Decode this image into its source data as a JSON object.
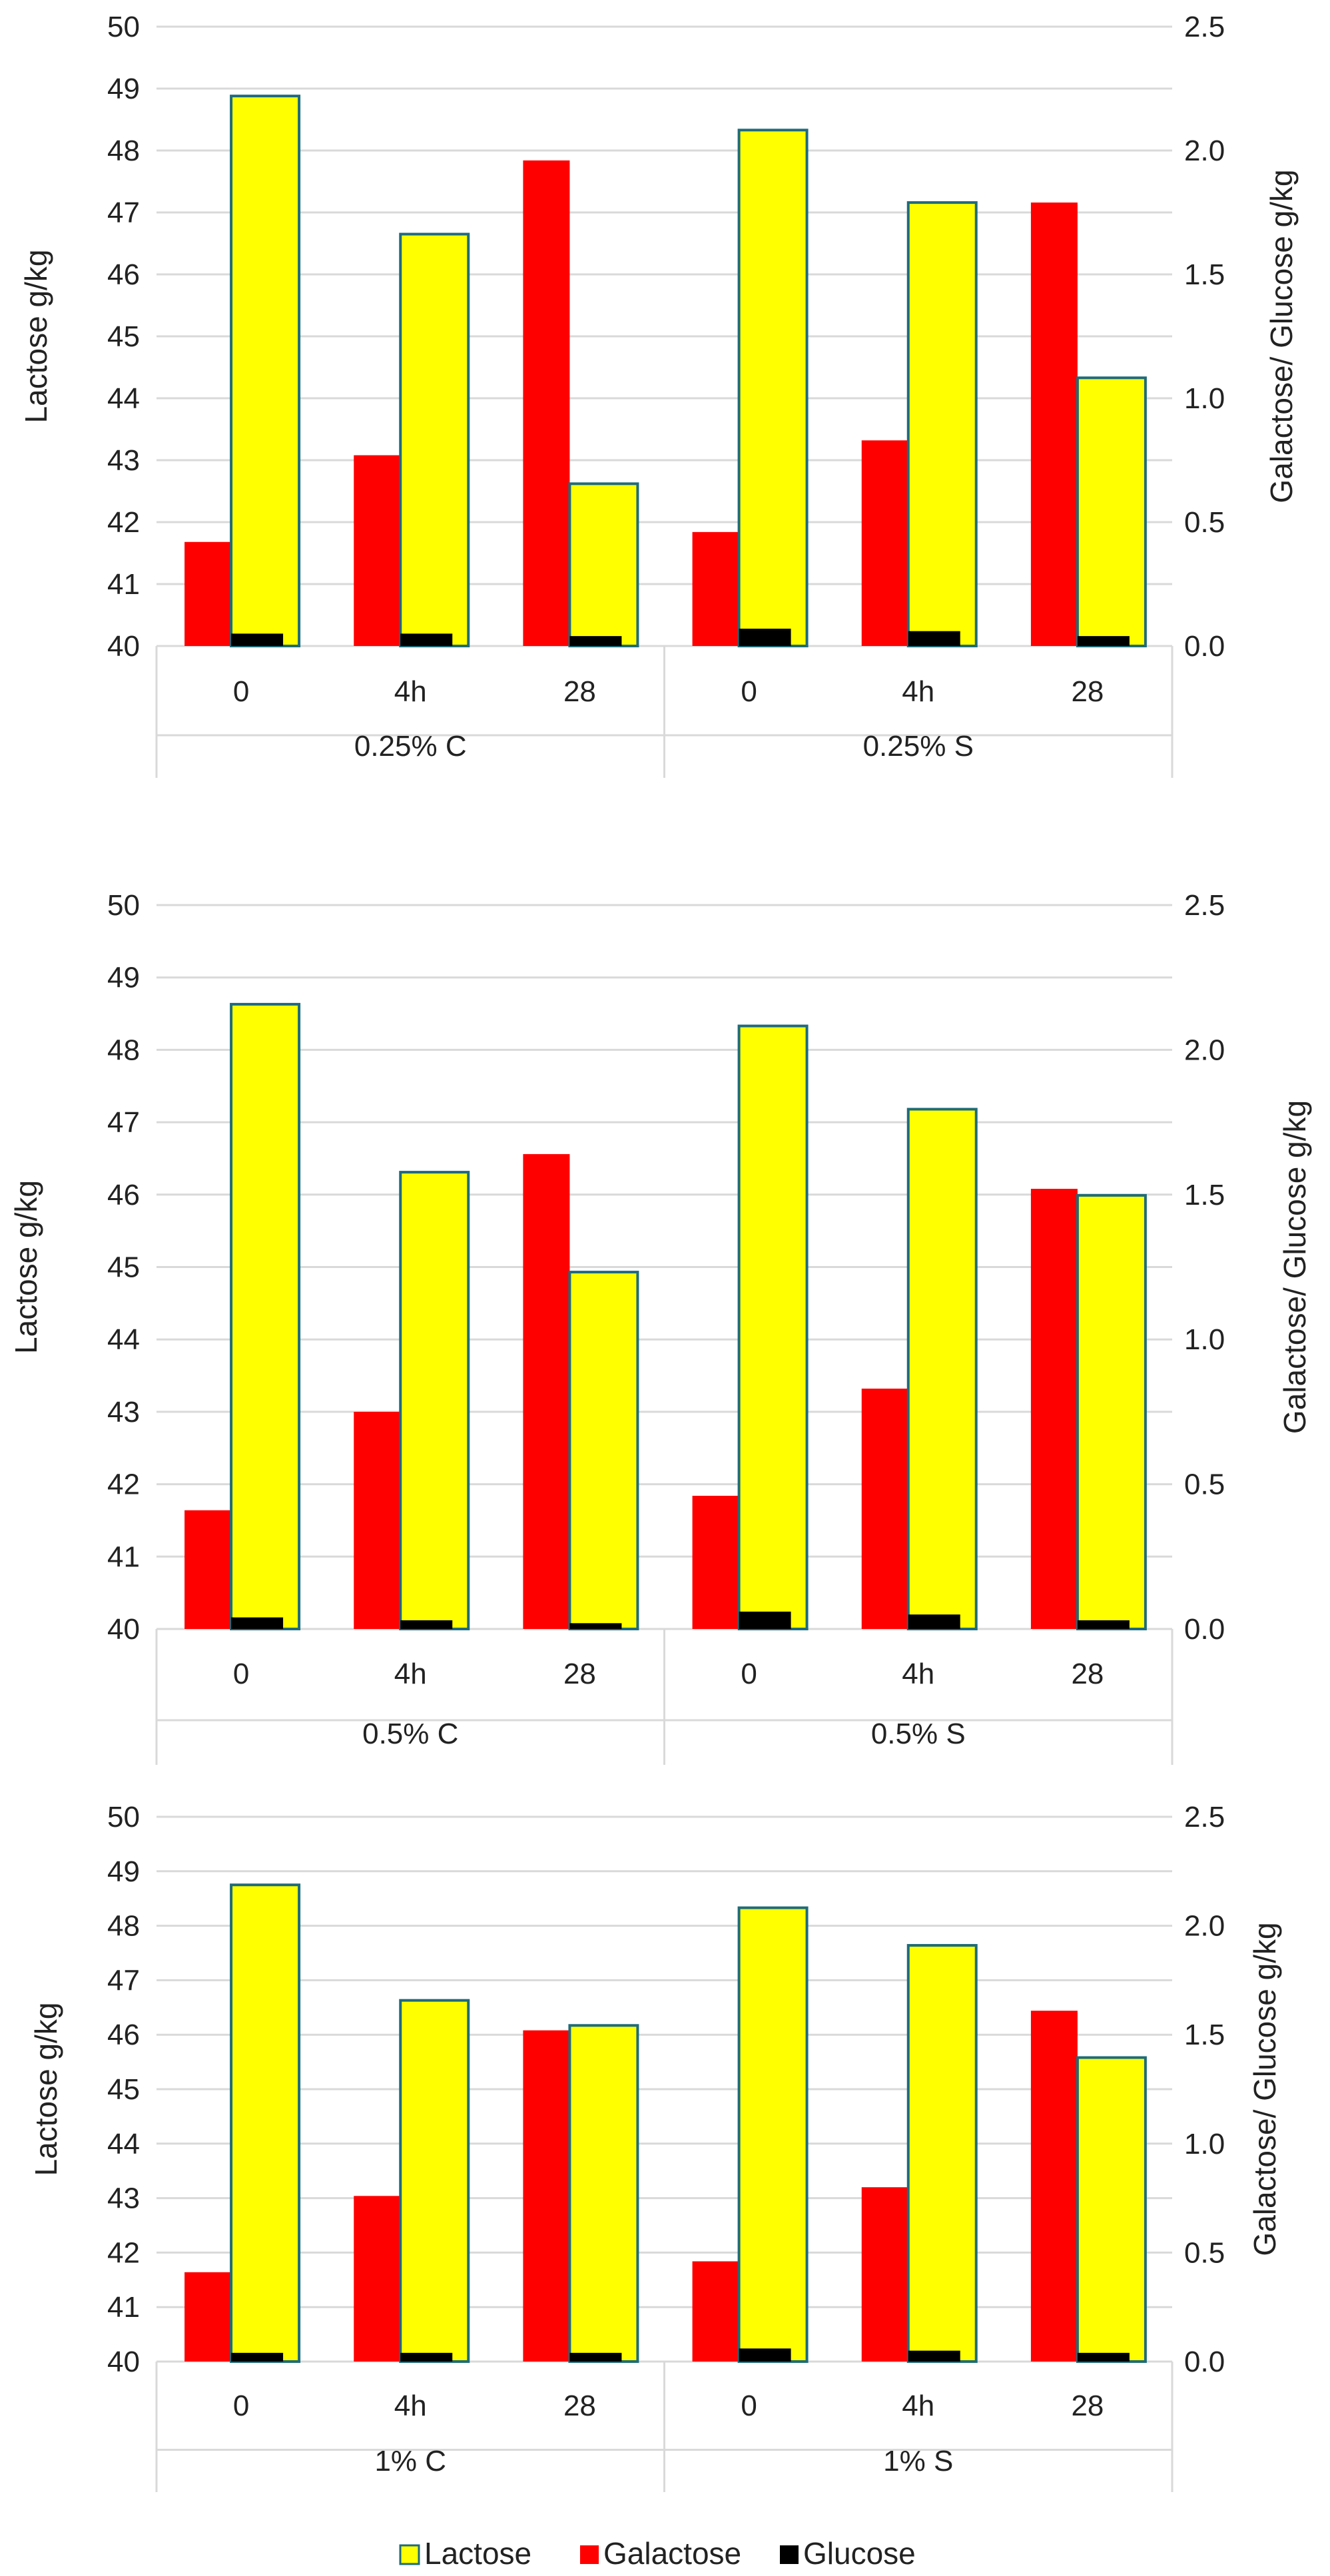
{
  "legend": {
    "items": [
      {
        "name": "Lactose",
        "color": "#ffff00",
        "border": "#1f6b7a"
      },
      {
        "name": "Galactose",
        "color": "#ff0000"
      },
      {
        "name": "Glucose",
        "color": "#000000"
      }
    ]
  },
  "chart_data": [
    {
      "type": "bar",
      "ylabel": "Lactose g/kg",
      "y2label": "Galactose/ Glucose g/kg",
      "ylim": [
        40,
        50
      ],
      "y2lim": [
        0,
        2.5
      ],
      "yticks": [
        "40",
        "41",
        "42",
        "43",
        "44",
        "45",
        "46",
        "47",
        "48",
        "49",
        "50"
      ],
      "y2ticks": [
        "0.0",
        "0.5",
        "1.0",
        "1.5",
        "2.0",
        "2.5"
      ],
      "categories": [
        "0",
        "4h",
        "28",
        "0",
        "4h",
        "28"
      ],
      "groups": [
        "0.25% C",
        "0.25% S"
      ],
      "series": [
        {
          "name": "Lactose",
          "axis": "left",
          "values": [
            48.88,
            46.65,
            42.62,
            48.33,
            47.16,
            44.33
          ]
        },
        {
          "name": "Galactose",
          "axis": "right",
          "values": [
            0.42,
            0.77,
            1.96,
            0.46,
            0.83,
            1.79
          ]
        },
        {
          "name": "Glucose",
          "axis": "right",
          "values": [
            0.05,
            0.05,
            0.04,
            0.07,
            0.06,
            0.04
          ]
        }
      ]
    },
    {
      "type": "bar",
      "ylabel": "Lactose g/kg",
      "y2label": "Galactose/ Glucose g/kg",
      "ylim": [
        40,
        50
      ],
      "y2lim": [
        0,
        2.5
      ],
      "yticks": [
        "40",
        "41",
        "42",
        "43",
        "44",
        "45",
        "46",
        "47",
        "48",
        "49",
        "50"
      ],
      "y2ticks": [
        "0.0",
        "0.5",
        "1.0",
        "1.5",
        "2.0",
        "2.5"
      ],
      "categories": [
        "0",
        "4h",
        "28",
        "0",
        "4h",
        "28"
      ],
      "groups": [
        "0.5% C",
        "0.5% S"
      ],
      "series": [
        {
          "name": "Lactose",
          "axis": "left",
          "values": [
            48.63,
            46.31,
            44.93,
            48.33,
            47.18,
            45.99
          ]
        },
        {
          "name": "Galactose",
          "axis": "right",
          "values": [
            0.41,
            0.75,
            1.64,
            0.46,
            0.83,
            1.52
          ]
        },
        {
          "name": "Glucose",
          "axis": "right",
          "values": [
            0.04,
            0.03,
            0.02,
            0.06,
            0.05,
            0.03
          ]
        }
      ]
    },
    {
      "type": "bar",
      "ylabel": "Lactose g/kg",
      "y2label": "Galactose/ Glucose g/kg",
      "ylim": [
        40,
        50
      ],
      "y2lim": [
        0,
        2.5
      ],
      "yticks": [
        "40",
        "41",
        "42",
        "43",
        "44",
        "45",
        "46",
        "47",
        "48",
        "49",
        "50"
      ],
      "y2ticks": [
        "0.0",
        "0.5",
        "1.0",
        "1.5",
        "2.0",
        "2.5"
      ],
      "categories": [
        "0",
        "4h",
        "28",
        "0",
        "4h",
        "28"
      ],
      "groups": [
        "1% C",
        "1% S"
      ],
      "series": [
        {
          "name": "Lactose",
          "axis": "left",
          "values": [
            48.75,
            46.63,
            46.17,
            48.33,
            47.64,
            45.58
          ]
        },
        {
          "name": "Galactose",
          "axis": "right",
          "values": [
            0.41,
            0.76,
            1.52,
            0.46,
            0.8,
            1.61
          ]
        },
        {
          "name": "Glucose",
          "axis": "right",
          "values": [
            0.04,
            0.04,
            0.04,
            0.06,
            0.05,
            0.04
          ]
        }
      ]
    }
  ]
}
